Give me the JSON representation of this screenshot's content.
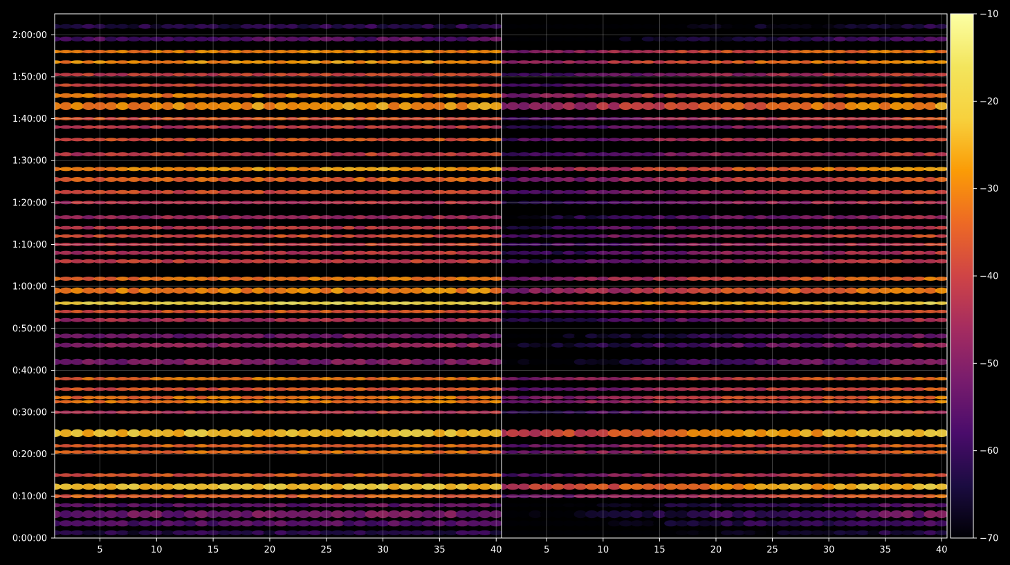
{
  "chart_data": {
    "type": "heatmap",
    "title": "",
    "xlabel": "",
    "ylabel": "",
    "grid": true,
    "panels": [
      {
        "name": "",
        "xlim": [
          1,
          40
        ],
        "x_ticks": [
          5,
          10,
          15,
          20,
          25,
          30,
          35,
          40
        ],
        "x_tick_labels": [
          "5",
          "10",
          "15",
          "20",
          "25",
          "30",
          "35",
          "40"
        ]
      },
      {
        "name": "",
        "xlim": [
          1,
          40
        ],
        "x_ticks": [
          5,
          10,
          15,
          20,
          25,
          30,
          35,
          40
        ],
        "x_tick_labels": [
          "5",
          "10",
          "15",
          "20",
          "25",
          "30",
          "35",
          "40"
        ]
      }
    ],
    "ylim": [
      0,
      7500
    ],
    "y_ticks": [
      0,
      600,
      1200,
      1800,
      2400,
      3000,
      3600,
      4200,
      4800,
      5400,
      6000,
      6600,
      7200
    ],
    "y_tick_labels": [
      "0:00:00",
      "0:10:00",
      "0:20:00",
      "0:30:00",
      "0:40:00",
      "0:50:00",
      "1:00:00",
      "1:10:00",
      "1:20:00",
      "1:30:00",
      "1:40:00",
      "1:50:00",
      "2:00:00"
    ],
    "colorbar": {
      "colormap": "inferno",
      "range": [
        -70,
        -10
      ],
      "ticks": [
        -10,
        -20,
        -30,
        -40,
        -50,
        -60,
        -70
      ],
      "tick_labels": [
        "−10",
        "−20",
        "−30",
        "−40",
        "−50",
        "−60",
        "−70"
      ]
    },
    "bands": [
      {
        "t": 75,
        "level": -62,
        "width": 70
      },
      {
        "t": 210,
        "level": -56,
        "width": 90
      },
      {
        "t": 340,
        "level": -52,
        "width": 110
      },
      {
        "t": 470,
        "level": -54,
        "width": 60
      },
      {
        "t": 600,
        "level": -34,
        "width": 55
      },
      {
        "t": 735,
        "level": -22,
        "width": 90
      },
      {
        "t": 900,
        "level": -36,
        "width": 55
      },
      {
        "t": 1230,
        "level": -33,
        "width": 50
      },
      {
        "t": 1320,
        "level": -34,
        "width": 50
      },
      {
        "t": 1500,
        "level": -22,
        "width": 110
      },
      {
        "t": 1800,
        "level": -42,
        "width": 45
      },
      {
        "t": 1950,
        "level": -31,
        "width": 45
      },
      {
        "t": 2010,
        "level": -32,
        "width": 45
      },
      {
        "t": 2130,
        "level": -36,
        "width": 45
      },
      {
        "t": 2280,
        "level": -32,
        "width": 45
      },
      {
        "t": 2520,
        "level": -50,
        "width": 90
      },
      {
        "t": 2760,
        "level": -48,
        "width": 70
      },
      {
        "t": 2890,
        "level": -52,
        "width": 70
      },
      {
        "t": 3120,
        "level": -44,
        "width": 60
      },
      {
        "t": 3240,
        "level": -36,
        "width": 45
      },
      {
        "t": 3360,
        "level": -18,
        "width": 50
      },
      {
        "t": 3540,
        "level": -30,
        "width": 90
      },
      {
        "t": 3710,
        "level": -32,
        "width": 60
      },
      {
        "t": 3960,
        "level": -40,
        "width": 60
      },
      {
        "t": 4080,
        "level": -42,
        "width": 60
      },
      {
        "t": 4200,
        "level": -40,
        "width": 50
      },
      {
        "t": 4320,
        "level": -38,
        "width": 50
      },
      {
        "t": 4440,
        "level": -42,
        "width": 45
      },
      {
        "t": 4590,
        "level": -46,
        "width": 60
      },
      {
        "t": 4800,
        "level": -42,
        "width": 45
      },
      {
        "t": 4950,
        "level": -38,
        "width": 60
      },
      {
        "t": 5130,
        "level": -34,
        "width": 70
      },
      {
        "t": 5280,
        "level": -28,
        "width": 60
      },
      {
        "t": 5490,
        "level": -40,
        "width": 60
      },
      {
        "t": 5700,
        "level": -36,
        "width": 45
      },
      {
        "t": 5880,
        "level": -42,
        "width": 45
      },
      {
        "t": 6000,
        "level": -36,
        "width": 45
      },
      {
        "t": 6180,
        "level": -28,
        "width": 110
      },
      {
        "t": 6330,
        "level": -30,
        "width": 70
      },
      {
        "t": 6480,
        "level": -38,
        "width": 50
      },
      {
        "t": 6630,
        "level": -40,
        "width": 45
      },
      {
        "t": 6810,
        "level": -28,
        "width": 40
      },
      {
        "t": 6960,
        "level": -30,
        "width": 40
      },
      {
        "t": 7140,
        "level": -56,
        "width": 70
      },
      {
        "t": 7320,
        "level": -62,
        "width": 70
      }
    ],
    "panel_profiles": [
      {
        "start_level": -2,
        "mid_level": 0,
        "end_level": 0
      },
      {
        "start_level": -22,
        "mid_level": -8,
        "end_level": 0
      }
    ]
  }
}
